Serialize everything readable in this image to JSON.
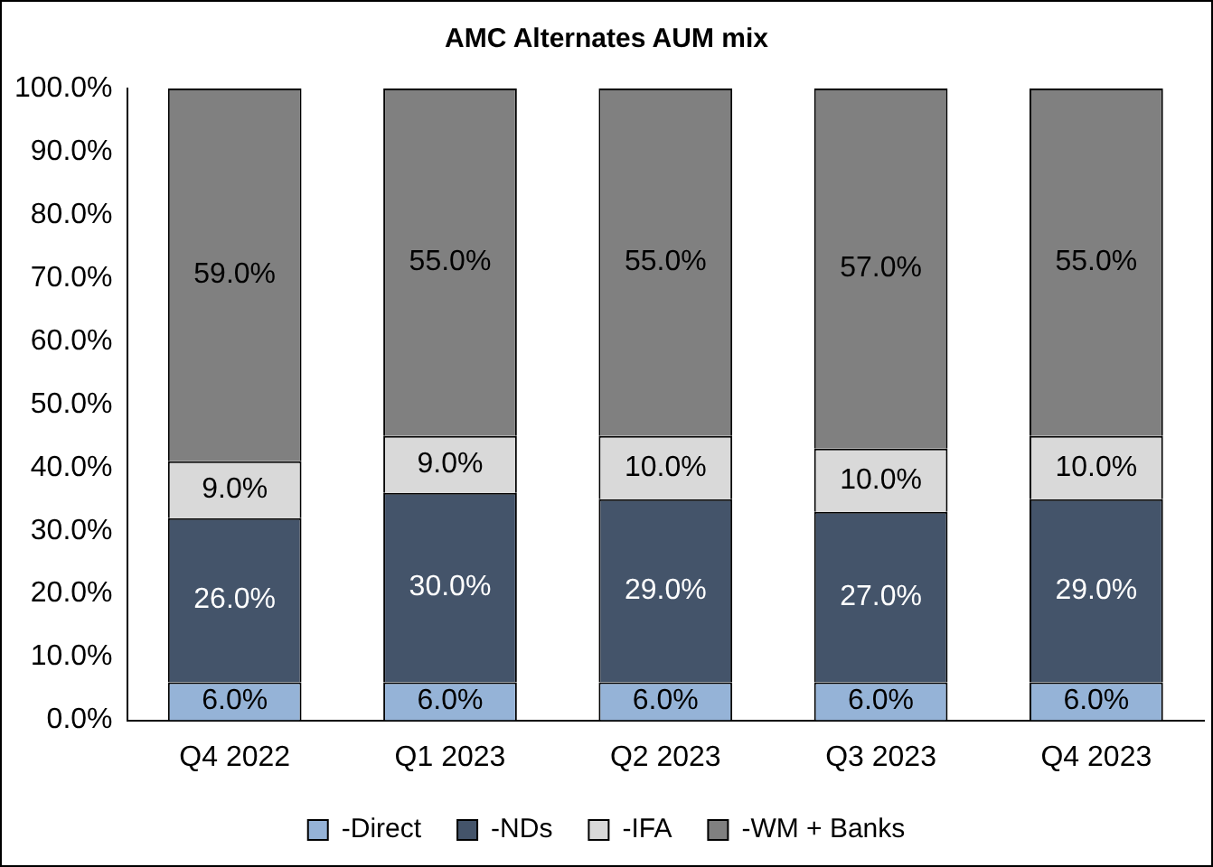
{
  "chart_data": {
    "type": "bar",
    "title": "AMC Alternates AUM mix",
    "stacked": true,
    "categories": [
      "Q4 2022",
      "Q1 2023",
      "Q2 2023",
      "Q3 2023",
      "Q4 2023"
    ],
    "series": [
      {
        "name": "-Direct",
        "color": "#95b3d7",
        "values": [
          6,
          6,
          6,
          6,
          6
        ],
        "value_labels": [
          "6.0%",
          "6.0%",
          "6.0%",
          "6.0%",
          "6.0%"
        ]
      },
      {
        "name": "-NDs",
        "color": "#44546a",
        "values": [
          26,
          30,
          29,
          27,
          29
        ],
        "value_labels": [
          "26.0%",
          "30.0%",
          "29.0%",
          "27.0%",
          "29.0%"
        ]
      },
      {
        "name": "-IFA",
        "color": "#d9d9d9",
        "values": [
          9,
          9,
          10,
          10,
          10
        ],
        "value_labels": [
          "9.0%",
          "9.0%",
          "10.0%",
          "10.0%",
          "10.0%"
        ]
      },
      {
        "name": "-WM + Banks",
        "color": "#808080",
        "values": [
          59,
          55,
          55,
          57,
          55
        ],
        "value_labels": [
          "59.0%",
          "55.0%",
          "55.0%",
          "57.0%",
          "55.0%"
        ]
      }
    ],
    "ylim": [
      0,
      100
    ],
    "yticks": [
      {
        "value": 0,
        "label": "0.0%"
      },
      {
        "value": 10,
        "label": "10.0%"
      },
      {
        "value": 20,
        "label": "20.0%"
      },
      {
        "value": 30,
        "label": "30.0%"
      },
      {
        "value": 40,
        "label": "40.0%"
      },
      {
        "value": 50,
        "label": "50.0%"
      },
      {
        "value": 60,
        "label": "60.0%"
      },
      {
        "value": 70,
        "label": "70.0%"
      },
      {
        "value": 80,
        "label": "80.0%"
      },
      {
        "value": 90,
        "label": "90.0%"
      },
      {
        "value": 100,
        "label": "100.0%"
      }
    ],
    "grid": false,
    "legend": "bottom"
  }
}
